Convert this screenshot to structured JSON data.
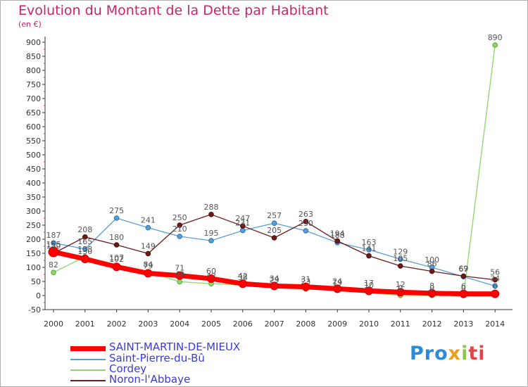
{
  "chart_data": {
    "type": "line",
    "title": "Evolution du Montant de la Dette par Habitant",
    "subtitle": "(en €)",
    "x": [
      2000,
      2001,
      2002,
      2003,
      2004,
      2005,
      2006,
      2007,
      2008,
      2009,
      2010,
      2011,
      2012,
      2013,
      2014
    ],
    "ylim": [
      -50,
      900
    ],
    "yticks": [
      -50,
      0,
      50,
      100,
      150,
      200,
      250,
      300,
      350,
      400,
      450,
      500,
      550,
      600,
      650,
      700,
      750,
      800,
      850,
      900
    ],
    "grid": false,
    "legend_position": "bottom-left",
    "series": [
      {
        "name": "SAINT-MARTIN-DE-MIEUX",
        "color": "#ff0000",
        "values": [
          155,
          130,
          102,
          79,
          71,
          60,
          42,
          34,
          31,
          24,
          17,
          12,
          8,
          6,
          6
        ]
      },
      {
        "name": "Saint-Pierre-du-Bû",
        "color": "#5a9fd4",
        "values": [
          187,
          165,
          275,
          241,
          210,
          195,
          231,
          257,
          230,
          188,
          163,
          129,
          100,
          67,
          34
        ]
      },
      {
        "name": "Cordey",
        "color": "#8cd66a",
        "values": [
          82,
          138,
          107,
          84,
          49,
          42,
          38,
          29,
          23,
          19,
          10,
          0,
          0,
          0,
          890
        ]
      },
      {
        "name": "Noron-l'Abbaye",
        "color": "#6b1a1a",
        "values": [
          150,
          208,
          180,
          149,
          250,
          288,
          247,
          205,
          263,
          194,
          141,
          105,
          86,
          69,
          56
        ]
      }
    ]
  },
  "logo": {
    "text": "Proxiti",
    "p1": "Pro",
    "p2": "x",
    "p3": "i",
    "p4": "ti"
  }
}
